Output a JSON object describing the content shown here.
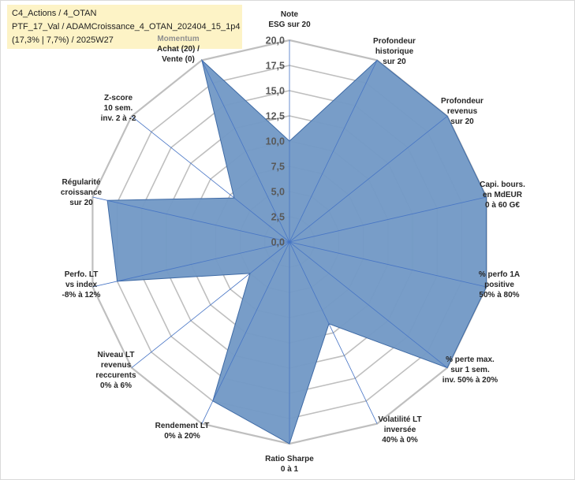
{
  "title_lines": [
    "C4_Actions / 4_OTAN",
    "PTF_17_Val / ADAMCroissance_4_OTAN_202404_15_1p4",
    "(17,3% | 7,7%) / 2025W27"
  ],
  "chart_data": {
    "type": "radar",
    "rlim": [
      0,
      20
    ],
    "r_ticks": [
      "0,0",
      "2,5",
      "5,0",
      "7,5",
      "10,0",
      "12,5",
      "15,0",
      "17,5",
      "20,0"
    ],
    "grid": true,
    "legend": "none",
    "axes": [
      [
        "Note",
        "ESG sur 20"
      ],
      [
        "Profondeur",
        "historique",
        "sur 20"
      ],
      [
        "Profondeur",
        "revenus",
        "sur 20"
      ],
      [
        "Capi. bours.",
        "en MdEUR",
        "0 à 60 G€"
      ],
      [
        "% perfo 1A",
        "positive",
        "50% à 80%"
      ],
      [
        "% perte max.",
        "sur 1 sem.",
        "inv. 50% à 20%"
      ],
      [
        "Volatilité LT",
        "inversée",
        "40% à 0%"
      ],
      [
        "Ratio Sharpe",
        "0 à 1"
      ],
      [
        "Rendement LT",
        "0% à 20%"
      ],
      [
        "Niveau LT",
        "revenus",
        "reccurents",
        "0% à 6%"
      ],
      [
        "Perfo. LT",
        "vs index",
        "-8% à 12%"
      ],
      [
        "Régularité",
        "croissance",
        "sur 20"
      ],
      [
        "Z-score",
        "10 sem.",
        "inv. 2 à -2"
      ],
      [
        "Momentum",
        "Achat (20) /",
        "Vente (0)"
      ]
    ],
    "values": [
      10.0,
      20.0,
      20.0,
      20.0,
      20.0,
      20.0,
      9.0,
      20.0,
      17.5,
      5.0,
      17.5,
      18.5,
      7.0,
      20.0
    ],
    "series_color": "#7399c6",
    "series_edge": "#3e6aa5",
    "grid_color": "#bfbfbf",
    "axis_color": "#4472c4"
  }
}
